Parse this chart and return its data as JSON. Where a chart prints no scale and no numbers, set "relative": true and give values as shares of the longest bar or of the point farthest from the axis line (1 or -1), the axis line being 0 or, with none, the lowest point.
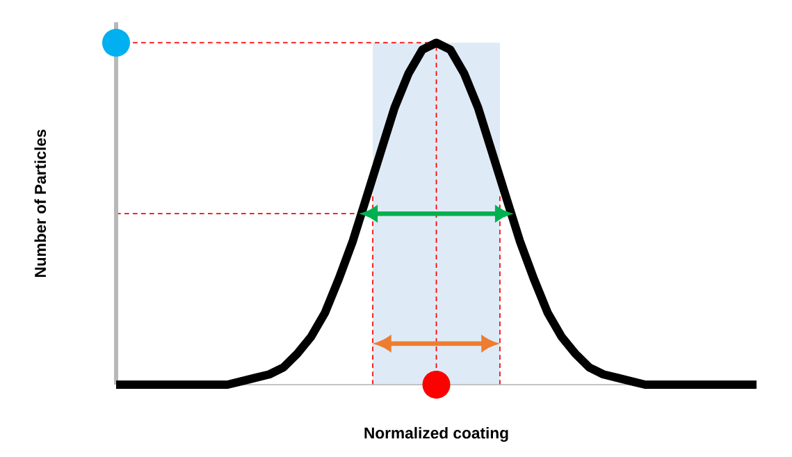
{
  "chart_data": {
    "type": "line",
    "relative": true,
    "xlabel": "Normalized coating",
    "ylabel": "Number of Particles",
    "categories": [
      null,
      null,
      null,
      null,
      null,
      null,
      null,
      null,
      null,
      null,
      null,
      null,
      null,
      null,
      null,
      null,
      null,
      null,
      null,
      null,
      null,
      null,
      null,
      null,
      null,
      null,
      null,
      null,
      null,
      null,
      null,
      null,
      null,
      null,
      null,
      null,
      null,
      null,
      null,
      null,
      null,
      null,
      null,
      null,
      null,
      null,
      null
    ],
    "series": [
      {
        "color": "#000000",
        "values": [
          0,
          0,
          0,
          0,
          0,
          0,
          0,
          0,
          0,
          0.01,
          0.02,
          0.03,
          0.05,
          0.09,
          0.14,
          0.21,
          0.31,
          0.42,
          0.55,
          0.68,
          0.81,
          0.91,
          0.98,
          1,
          0.98,
          0.91,
          0.81,
          0.68,
          0.55,
          0.42,
          0.31,
          0.21,
          0.14,
          0.09,
          0.05,
          0.03,
          0.02,
          0.01,
          0,
          0,
          0,
          0,
          0,
          0,
          0,
          0,
          0
        ]
      }
    ]
  }
}
